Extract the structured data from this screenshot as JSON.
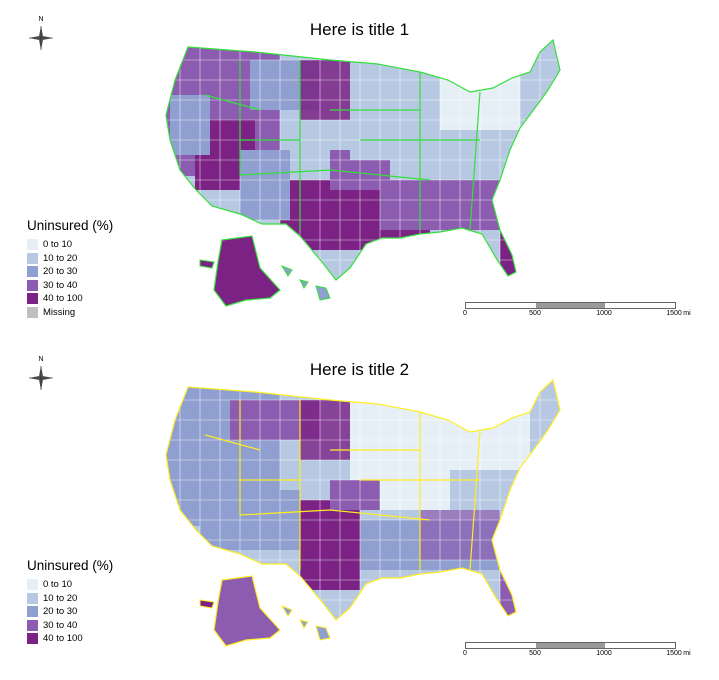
{
  "maps": [
    {
      "title": "Here is title 1",
      "border_color": "#33e03a",
      "legend": {
        "title": "Uninsured (%)",
        "items": [
          {
            "label": "0 to 10",
            "color": "#e6eff6"
          },
          {
            "label": "10 to 20",
            "color": "#b7c9e2"
          },
          {
            "label": "20 to 30",
            "color": "#8f9fcf"
          },
          {
            "label": "30 to 40",
            "color": "#8c5cb0"
          },
          {
            "label": "40 to 100",
            "color": "#7b2284"
          },
          {
            "label": "Missing",
            "color": "#bfbfbf"
          }
        ]
      },
      "scale": {
        "ticks": [
          "0",
          "500",
          "1000",
          "1500"
        ],
        "unit": "mi"
      }
    },
    {
      "title": "Here is title 2",
      "border_color": "#ffee22",
      "legend": {
        "title": "Uninsured (%)",
        "items": [
          {
            "label": "0 to 10",
            "color": "#e6eff6"
          },
          {
            "label": "10 to 20",
            "color": "#b7c9e2"
          },
          {
            "label": "20 to 30",
            "color": "#8f9fcf"
          },
          {
            "label": "30 to 40",
            "color": "#8c5cb0"
          },
          {
            "label": "40 to 100",
            "color": "#7b2284"
          }
        ]
      },
      "scale": {
        "ticks": [
          "0",
          "500",
          "1000",
          "1500"
        ],
        "unit": "mi"
      }
    }
  ],
  "compass": {
    "label": "N",
    "icon": "north-arrow-icon"
  }
}
